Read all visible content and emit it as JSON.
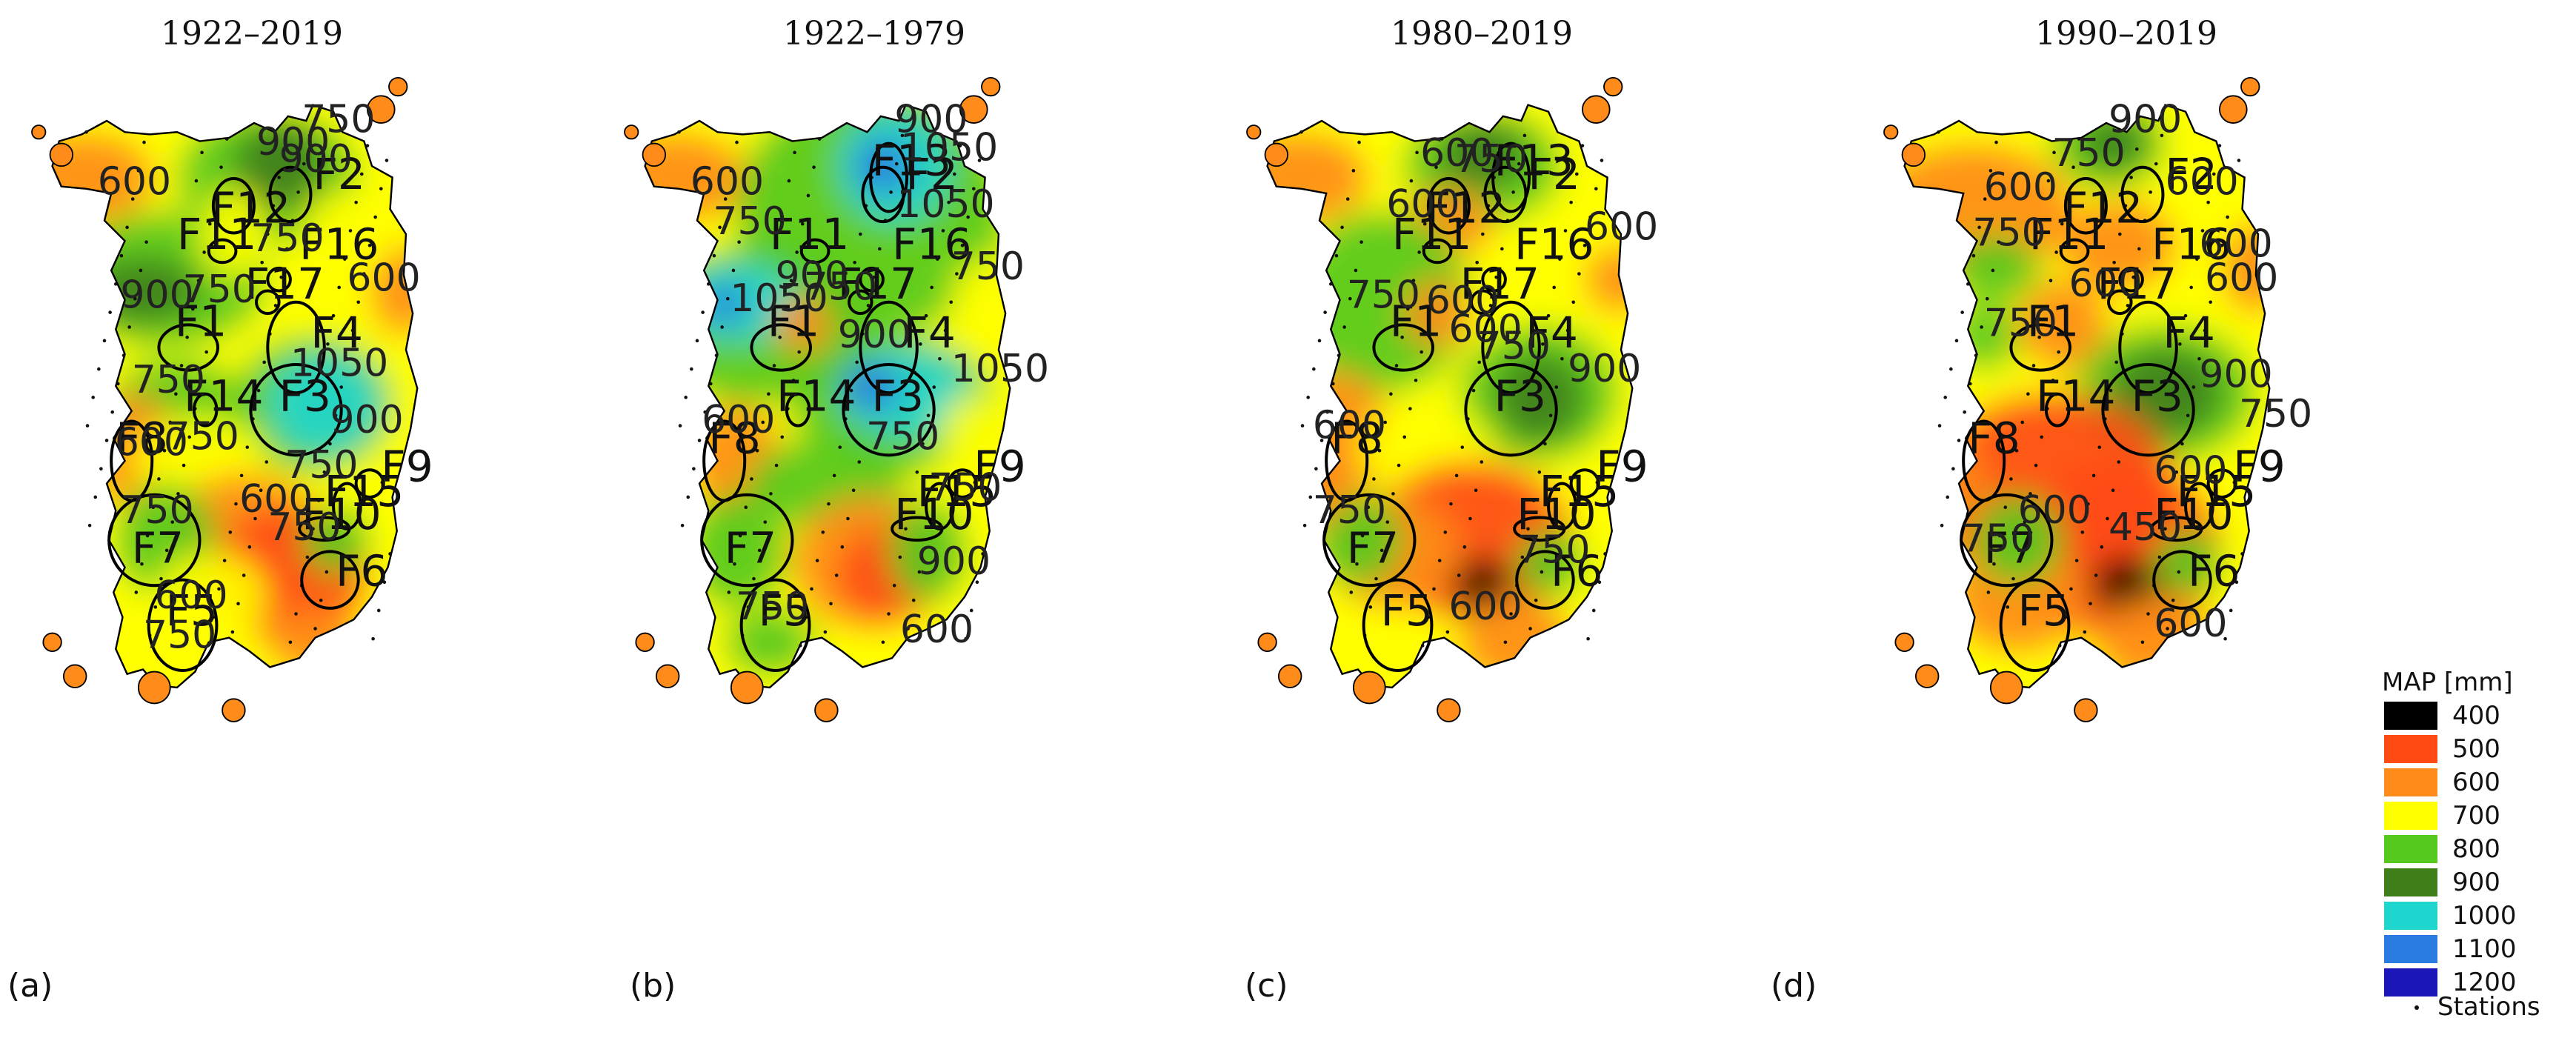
{
  "figure": {
    "panels": [
      {
        "letter": "(a)",
        "title": "1922–2019",
        "forests": [
          [
            "F12",
            ""
          ],
          [
            "F2",
            ""
          ],
          [
            "F11",
            ""
          ],
          [
            "F16",
            ""
          ],
          [
            "F17",
            ""
          ],
          [
            "F1",
            ""
          ],
          [
            "F4",
            ""
          ],
          [
            "F14",
            ""
          ],
          [
            "F3",
            ""
          ],
          [
            "F8",
            ""
          ],
          [
            "F9",
            ""
          ],
          [
            "F15",
            ""
          ],
          [
            "F10",
            ""
          ],
          [
            "F7",
            ""
          ],
          [
            "F6",
            ""
          ],
          [
            "F5",
            ""
          ]
        ],
        "contours": [
          "750",
          "900",
          "900",
          "600",
          "750",
          "900",
          "750",
          "600",
          "750",
          "1050",
          "600",
          "750",
          "900",
          "750",
          "600",
          "750",
          "750",
          "750",
          "600"
        ]
      },
      {
        "letter": "(b)",
        "title": "1922–1979",
        "forests": [
          [
            "F13",
            ""
          ],
          [
            "F11",
            ""
          ],
          [
            "F16",
            ""
          ],
          [
            "F2",
            ""
          ],
          [
            "F17",
            ""
          ],
          [
            "F4",
            ""
          ],
          [
            "F1",
            ""
          ],
          [
            "F14",
            ""
          ],
          [
            "F3",
            ""
          ],
          [
            "F8",
            ""
          ],
          [
            "F9",
            ""
          ],
          [
            "F15",
            ""
          ],
          [
            "F10",
            ""
          ],
          [
            "F7",
            ""
          ],
          [
            "F5",
            ""
          ]
        ],
        "contours": [
          "900",
          "1050",
          "1050",
          "600",
          "750",
          "900",
          "1050",
          "750",
          "750",
          "900",
          "1050",
          "600",
          "750",
          "750",
          "900",
          "750",
          "600"
        ]
      },
      {
        "letter": "(c)",
        "title": "1980–2019",
        "forests": [
          [
            "F13",
            ""
          ],
          [
            "F2",
            ""
          ],
          [
            "F12",
            ""
          ],
          [
            "F11",
            ""
          ],
          [
            "F16",
            ""
          ],
          [
            "F17",
            ""
          ],
          [
            "F4",
            ""
          ],
          [
            "F1",
            ""
          ],
          [
            "F3",
            ""
          ],
          [
            "F8",
            ""
          ],
          [
            "F9",
            ""
          ],
          [
            "F15",
            ""
          ],
          [
            "F10",
            ""
          ],
          [
            "F7",
            ""
          ],
          [
            "F6",
            ""
          ],
          [
            "F5",
            ""
          ]
        ],
        "contours": [
          "600",
          "750",
          "600",
          "600",
          "600",
          "750",
          "600",
          "750",
          "900",
          "600",
          "750",
          "600",
          "750"
        ]
      },
      {
        "letter": "(d)",
        "title": "1990–2019",
        "forests": [
          [
            "F12",
            ""
          ],
          [
            "F2",
            ""
          ],
          [
            "F11",
            ""
          ],
          [
            "F16",
            ""
          ],
          [
            "F17",
            ""
          ],
          [
            "F1",
            ""
          ],
          [
            "F4",
            ""
          ],
          [
            "F8",
            ""
          ],
          [
            "F14",
            ""
          ],
          [
            "F3",
            ""
          ],
          [
            "F9",
            ""
          ],
          [
            "F15",
            ""
          ],
          [
            "F7",
            ""
          ],
          [
            "F10",
            ""
          ],
          [
            "F6",
            ""
          ],
          [
            "F5",
            ""
          ]
        ],
        "contours": [
          "600",
          "750",
          "900",
          "600",
          "600",
          "750",
          "600",
          "600",
          "750",
          "900",
          "750",
          "600",
          "600",
          "450",
          "750",
          "600"
        ]
      }
    ]
  },
  "legend": {
    "title": "MAP [mm]",
    "items": [
      {
        "label": "400",
        "color": "#000000"
      },
      {
        "label": "500",
        "color": "#ff4a14"
      },
      {
        "label": "600",
        "color": "#ff8c1a"
      },
      {
        "label": "700",
        "color": "#ffff00"
      },
      {
        "label": "800",
        "color": "#56c91f"
      },
      {
        "label": "900",
        "color": "#3f7f1a"
      },
      {
        "label": "1000",
        "color": "#1fd6cf"
      },
      {
        "label": "1100",
        "color": "#2a7be0"
      },
      {
        "label": "1200",
        "color": "#1a16b8"
      }
    ],
    "stations_label": "Stations"
  }
}
